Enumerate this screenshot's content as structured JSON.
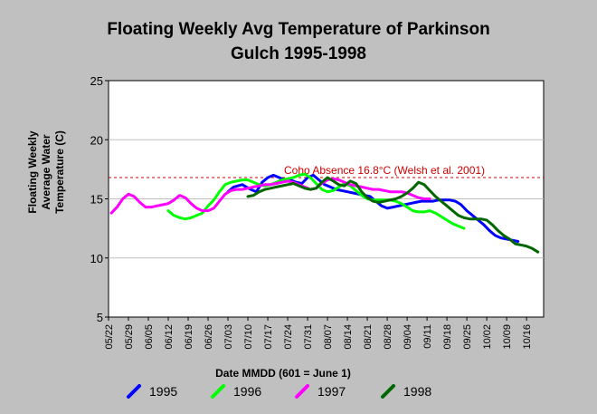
{
  "chart_data": {
    "type": "line",
    "title_lines": [
      "Floating Weekly Avg Temperature of Parkinson",
      "Gulch 1995-1998"
    ],
    "xlabel": "Date MMDD (601 = June 1)",
    "ylabel_lines": [
      "Floating Weekly",
      "Average Water",
      "Temperature (C)"
    ],
    "ylim": [
      5,
      25
    ],
    "yticks": [
      5,
      10,
      15,
      20,
      25
    ],
    "xlim_day": [
      0,
      153
    ],
    "x_tick_days": [
      0,
      7,
      14,
      21,
      28,
      35,
      42,
      49,
      56,
      63,
      70,
      77,
      84,
      91,
      98,
      105,
      112,
      119,
      126,
      133,
      140,
      147
    ],
    "x_tick_labels": [
      "05/22",
      "05/29",
      "06/05",
      "06/12",
      "06/19",
      "06/26",
      "07/03",
      "07/10",
      "07/17",
      "07/24",
      "07/31",
      "08/07",
      "08/14",
      "08/21",
      "08/28",
      "09/04",
      "09/11",
      "09/18",
      "09/25",
      "10/02",
      "10/09",
      "10/16"
    ],
    "grid": true,
    "legend_position": "bottom",
    "annotation": {
      "text": "Coho Absence 16.8°C (Welsh et al. 2001)",
      "y": 16.8,
      "color": "#cc0000"
    },
    "series": [
      {
        "name": "1995",
        "color": "#0000ff",
        "x": [
          42,
          44,
          47,
          50,
          52,
          54,
          56,
          58,
          60,
          62,
          64,
          66,
          68,
          70,
          72,
          74,
          76,
          78,
          80,
          82,
          84,
          86,
          88,
          90,
          92,
          94,
          96,
          98,
          100,
          102,
          104,
          106,
          108,
          110,
          112,
          114,
          116,
          118,
          120,
          122,
          124,
          126,
          128,
          130,
          132,
          134,
          136,
          138,
          140,
          142,
          144
        ],
        "y": [
          15.6,
          16.0,
          16.2,
          15.8,
          15.6,
          16.4,
          16.8,
          17.0,
          16.8,
          16.6,
          16.6,
          16.4,
          16.3,
          16.8,
          17.0,
          16.6,
          16.2,
          16.0,
          15.8,
          15.7,
          15.6,
          15.5,
          15.4,
          15.3,
          15.2,
          14.8,
          14.4,
          14.2,
          14.3,
          14.4,
          14.5,
          14.6,
          14.7,
          14.8,
          14.8,
          14.8,
          14.9,
          14.9,
          14.9,
          14.8,
          14.5,
          14.0,
          13.6,
          13.2,
          12.8,
          12.3,
          11.9,
          11.7,
          11.6,
          11.5,
          11.4
        ]
      },
      {
        "name": "1996",
        "color": "#00ff00",
        "x": [
          21,
          23,
          25,
          27,
          29,
          31,
          33,
          35,
          37,
          39,
          41,
          43,
          45,
          47,
          49,
          51,
          53,
          55,
          57,
          59,
          61,
          63,
          65,
          67,
          69,
          71,
          73,
          75,
          77,
          79,
          81,
          83,
          85,
          87,
          89,
          91,
          93,
          95,
          97,
          99,
          101,
          103,
          105,
          107,
          109,
          111,
          113,
          115,
          117,
          119,
          121,
          123,
          125
        ],
        "y": [
          14.0,
          13.6,
          13.4,
          13.3,
          13.4,
          13.6,
          13.8,
          14.4,
          14.9,
          15.6,
          16.2,
          16.4,
          16.5,
          16.6,
          16.6,
          16.4,
          16.2,
          16.1,
          16.2,
          16.4,
          16.6,
          16.7,
          16.8,
          17.0,
          17.1,
          16.8,
          16.3,
          15.8,
          15.6,
          15.7,
          16.0,
          16.3,
          16.1,
          15.7,
          15.3,
          15.0,
          14.9,
          14.9,
          14.9,
          14.9,
          14.8,
          14.6,
          14.3,
          14.0,
          13.9,
          13.9,
          14.0,
          13.8,
          13.5,
          13.2,
          12.9,
          12.7,
          12.5
        ]
      },
      {
        "name": "1997",
        "color": "#ff00ff",
        "x": [
          1,
          3,
          5,
          7,
          9,
          11,
          13,
          15,
          17,
          19,
          21,
          23,
          25,
          27,
          29,
          31,
          33,
          35,
          37,
          39,
          41,
          43,
          45,
          47,
          49,
          51,
          53,
          55,
          57,
          59,
          61,
          63,
          65,
          67,
          69,
          71,
          73,
          75,
          77,
          79,
          81,
          83,
          85,
          87,
          89,
          91,
          93,
          95,
          97,
          99,
          101,
          103,
          105,
          107,
          109,
          111,
          113
        ],
        "y": [
          13.8,
          14.3,
          15.0,
          15.4,
          15.2,
          14.7,
          14.3,
          14.3,
          14.4,
          14.5,
          14.6,
          14.9,
          15.3,
          15.1,
          14.6,
          14.2,
          14.0,
          14.0,
          14.2,
          14.8,
          15.4,
          15.7,
          15.8,
          15.8,
          15.9,
          16.0,
          16.1,
          16.2,
          16.2,
          16.3,
          16.4,
          16.5,
          16.4,
          16.2,
          16.0,
          15.8,
          15.9,
          16.3,
          16.6,
          16.7,
          16.6,
          16.4,
          16.2,
          16.1,
          16.0,
          15.9,
          15.8,
          15.8,
          15.7,
          15.6,
          15.6,
          15.6,
          15.5,
          15.3,
          15.1,
          15.0,
          15.0
        ]
      },
      {
        "name": "1998",
        "color": "#006600",
        "x": [
          49,
          51,
          53,
          55,
          57,
          59,
          61,
          63,
          65,
          67,
          69,
          71,
          73,
          75,
          77,
          79,
          81,
          83,
          85,
          87,
          89,
          91,
          93,
          95,
          97,
          99,
          101,
          103,
          105,
          107,
          109,
          111,
          113,
          115,
          117,
          119,
          121,
          123,
          125,
          127,
          129,
          131,
          133,
          135,
          137,
          139,
          141,
          143,
          145,
          147,
          149,
          151
        ],
        "y": [
          15.2,
          15.3,
          15.6,
          15.8,
          15.9,
          16.0,
          16.1,
          16.2,
          16.3,
          16.1,
          15.9,
          15.8,
          15.9,
          16.4,
          16.8,
          16.5,
          16.2,
          16.1,
          16.5,
          16.3,
          15.6,
          15.1,
          14.8,
          14.7,
          14.8,
          14.9,
          15.0,
          15.2,
          15.5,
          15.9,
          16.4,
          16.2,
          15.7,
          15.2,
          14.8,
          14.4,
          14.0,
          13.6,
          13.4,
          13.3,
          13.3,
          13.3,
          13.2,
          12.8,
          12.3,
          11.9,
          11.6,
          11.2,
          11.1,
          11.0,
          10.8,
          10.5
        ]
      }
    ]
  }
}
